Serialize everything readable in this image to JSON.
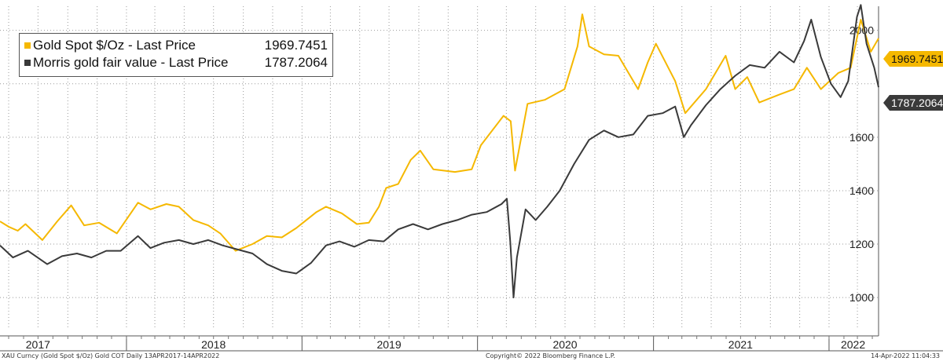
{
  "chart_data": {
    "type": "line",
    "ylim": [
      880,
      2090
    ],
    "y_ticks": [
      1000,
      1200,
      1400,
      1600,
      2000
    ],
    "y_tick_labels": [
      "1000",
      "1200",
      "1400",
      "1600",
      "2000"
    ],
    "x_range": [
      "2017-04-13",
      "2022-04-14"
    ],
    "x_labels": [
      {
        "label": "2017",
        "at": "2017-07-01"
      },
      {
        "label": "2018",
        "at": "2018-07-01"
      },
      {
        "label": "2019",
        "at": "2019-07-01"
      },
      {
        "label": "2020",
        "at": "2020-07-01"
      },
      {
        "label": "2021",
        "at": "2021-07-01"
      },
      {
        "label": "2022",
        "at": "2022-02-20"
      }
    ],
    "grid": true,
    "legend_position": "top-left",
    "series": [
      {
        "name": "Gold Spot $/Oz - Last Price",
        "color": "#f5b800",
        "last_value": "1969.7451",
        "points": [
          [
            "2017-04-13",
            1285
          ],
          [
            "2017-05-01",
            1265
          ],
          [
            "2017-05-20",
            1250
          ],
          [
            "2017-06-05",
            1275
          ],
          [
            "2017-07-10",
            1215
          ],
          [
            "2017-08-10",
            1285
          ],
          [
            "2017-09-08",
            1345
          ],
          [
            "2017-10-05",
            1270
          ],
          [
            "2017-11-05",
            1280
          ],
          [
            "2017-12-12",
            1240
          ],
          [
            "2018-01-25",
            1355
          ],
          [
            "2018-02-20",
            1330
          ],
          [
            "2018-03-25",
            1350
          ],
          [
            "2018-04-20",
            1340
          ],
          [
            "2018-05-20",
            1290
          ],
          [
            "2018-06-20",
            1270
          ],
          [
            "2018-07-15",
            1240
          ],
          [
            "2018-08-16",
            1175
          ],
          [
            "2018-09-20",
            1200
          ],
          [
            "2018-10-20",
            1230
          ],
          [
            "2018-11-20",
            1225
          ],
          [
            "2018-12-20",
            1260
          ],
          [
            "2019-01-31",
            1320
          ],
          [
            "2019-02-20",
            1340
          ],
          [
            "2019-03-25",
            1315
          ],
          [
            "2019-04-25",
            1275
          ],
          [
            "2019-05-20",
            1280
          ],
          [
            "2019-06-10",
            1340
          ],
          [
            "2019-06-25",
            1410
          ],
          [
            "2019-07-20",
            1425
          ],
          [
            "2019-08-15",
            1515
          ],
          [
            "2019-09-04",
            1550
          ],
          [
            "2019-10-01",
            1480
          ],
          [
            "2019-11-15",
            1470
          ],
          [
            "2019-12-20",
            1480
          ],
          [
            "2020-01-08",
            1570
          ],
          [
            "2020-02-24",
            1680
          ],
          [
            "2020-03-10",
            1660
          ],
          [
            "2020-03-19",
            1475
          ],
          [
            "2020-04-14",
            1725
          ],
          [
            "2020-05-20",
            1740
          ],
          [
            "2020-06-30",
            1780
          ],
          [
            "2020-07-27",
            1940
          ],
          [
            "2020-08-06",
            2060
          ],
          [
            "2020-08-20",
            1940
          ],
          [
            "2020-09-20",
            1910
          ],
          [
            "2020-10-20",
            1905
          ],
          [
            "2020-11-30",
            1780
          ],
          [
            "2020-12-20",
            1880
          ],
          [
            "2021-01-06",
            1950
          ],
          [
            "2021-02-15",
            1810
          ],
          [
            "2021-03-08",
            1690
          ],
          [
            "2021-04-20",
            1780
          ],
          [
            "2021-05-31",
            1905
          ],
          [
            "2021-06-20",
            1780
          ],
          [
            "2021-07-15",
            1825
          ],
          [
            "2021-08-09",
            1730
          ],
          [
            "2021-09-20",
            1760
          ],
          [
            "2021-10-20",
            1780
          ],
          [
            "2021-11-16",
            1860
          ],
          [
            "2021-12-15",
            1780
          ],
          [
            "2022-01-20",
            1840
          ],
          [
            "2022-02-15",
            1860
          ],
          [
            "2022-03-08",
            2040
          ],
          [
            "2022-03-29",
            1920
          ],
          [
            "2022-04-14",
            1969.7451
          ]
        ]
      },
      {
        "name": "Morris gold fair value - Last Price",
        "color": "#3a3a3a",
        "last_value": "1787.2064",
        "points": [
          [
            "2017-04-13",
            1195
          ],
          [
            "2017-05-10",
            1150
          ],
          [
            "2017-06-10",
            1175
          ],
          [
            "2017-07-20",
            1125
          ],
          [
            "2017-08-20",
            1155
          ],
          [
            "2017-09-20",
            1165
          ],
          [
            "2017-10-20",
            1150
          ],
          [
            "2017-11-20",
            1175
          ],
          [
            "2017-12-20",
            1175
          ],
          [
            "2018-01-25",
            1230
          ],
          [
            "2018-02-20",
            1185
          ],
          [
            "2018-03-20",
            1205
          ],
          [
            "2018-04-20",
            1215
          ],
          [
            "2018-05-20",
            1200
          ],
          [
            "2018-06-20",
            1215
          ],
          [
            "2018-07-20",
            1195
          ],
          [
            "2018-08-20",
            1180
          ],
          [
            "2018-09-20",
            1165
          ],
          [
            "2018-10-20",
            1125
          ],
          [
            "2018-11-20",
            1100
          ],
          [
            "2018-12-20",
            1090
          ],
          [
            "2019-01-20",
            1130
          ],
          [
            "2019-02-20",
            1195
          ],
          [
            "2019-03-20",
            1210
          ],
          [
            "2019-04-20",
            1190
          ],
          [
            "2019-05-20",
            1215
          ],
          [
            "2019-06-20",
            1210
          ],
          [
            "2019-07-20",
            1255
          ],
          [
            "2019-08-20",
            1275
          ],
          [
            "2019-09-20",
            1255
          ],
          [
            "2019-10-20",
            1275
          ],
          [
            "2019-11-20",
            1290
          ],
          [
            "2019-12-20",
            1310
          ],
          [
            "2020-01-20",
            1320
          ],
          [
            "2020-02-20",
            1350
          ],
          [
            "2020-03-02",
            1370
          ],
          [
            "2020-03-09",
            1210
          ],
          [
            "2020-03-16",
            1000
          ],
          [
            "2020-03-23",
            1150
          ],
          [
            "2020-04-10",
            1330
          ],
          [
            "2020-05-01",
            1290
          ],
          [
            "2020-05-25",
            1340
          ],
          [
            "2020-06-20",
            1400
          ],
          [
            "2020-07-20",
            1500
          ],
          [
            "2020-08-20",
            1590
          ],
          [
            "2020-09-20",
            1625
          ],
          [
            "2020-10-20",
            1600
          ],
          [
            "2020-11-20",
            1610
          ],
          [
            "2020-12-20",
            1680
          ],
          [
            "2021-01-20",
            1690
          ],
          [
            "2021-02-15",
            1715
          ],
          [
            "2021-03-05",
            1600
          ],
          [
            "2021-03-20",
            1645
          ],
          [
            "2021-04-20",
            1720
          ],
          [
            "2021-05-20",
            1780
          ],
          [
            "2021-06-20",
            1830
          ],
          [
            "2021-07-20",
            1870
          ],
          [
            "2021-08-20",
            1860
          ],
          [
            "2021-09-20",
            1920
          ],
          [
            "2021-10-20",
            1880
          ],
          [
            "2021-11-10",
            1960
          ],
          [
            "2021-11-25",
            2040
          ],
          [
            "2021-12-15",
            1900
          ],
          [
            "2022-01-05",
            1800
          ],
          [
            "2022-01-25",
            1750
          ],
          [
            "2022-02-10",
            1810
          ],
          [
            "2022-02-28",
            2050
          ],
          [
            "2022-03-08",
            2095
          ],
          [
            "2022-03-20",
            1950
          ],
          [
            "2022-04-05",
            1860
          ],
          [
            "2022-04-14",
            1787.2064
          ]
        ]
      }
    ]
  },
  "footer": {
    "left": "XAU Curncy (Gold Spot  $/Oz) Gold COT  Daily 13APR2017-14APR2022",
    "center": "Copyright© 2022 Bloomberg Finance L.P.",
    "right": "14-Apr-2022 11:04:33"
  }
}
